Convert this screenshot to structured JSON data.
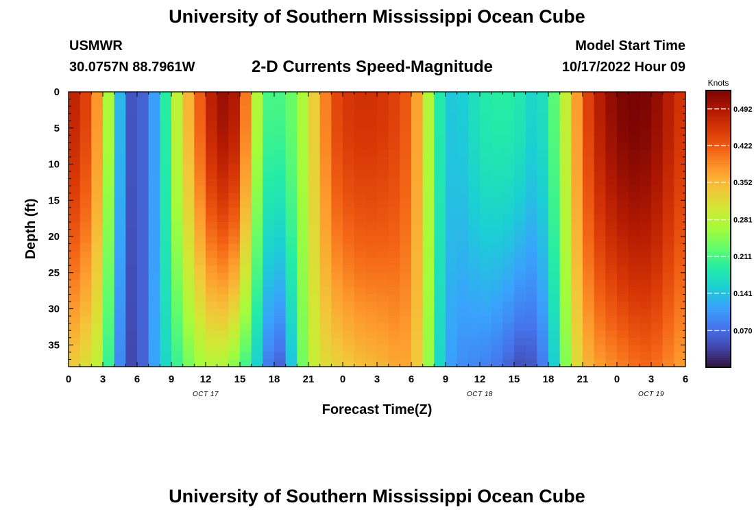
{
  "page": {
    "title": "University of Southern Mississippi Ocean Cube",
    "footer_title": "University of Southern Mississippi Ocean Cube"
  },
  "header": {
    "station": "USMWR",
    "coords": "30.0757N  88.7961W",
    "subtitle": "2-D Currents Speed-Magnitude",
    "model_label": "Model Start Time",
    "model_time": "10/17/2022 Hour 09"
  },
  "chart_data": {
    "type": "heatmap",
    "title": "2-D Currents Speed-Magnitude",
    "xlabel": "Forecast Time(Z)",
    "ylabel": "Depth (ft)",
    "x_range_hours": [
      0,
      54
    ],
    "y_range_ft": [
      0,
      38
    ],
    "x_tick_labels": [
      "0",
      "3",
      "6",
      "9",
      "12",
      "15",
      "18",
      "21",
      "0",
      "3",
      "6",
      "9",
      "12",
      "15",
      "18",
      "21",
      "0",
      "3",
      "6"
    ],
    "date_labels": [
      {
        "label": "OCT 17",
        "hour": 12
      },
      {
        "label": "OCT 18",
        "hour": 36
      },
      {
        "label": "OCT 19",
        "hour": 51
      }
    ],
    "y_ticks": [
      0,
      5,
      10,
      15,
      20,
      25,
      30,
      35
    ],
    "colorbar": {
      "label": "Knots",
      "min": 0.0,
      "max": 0.527,
      "ticks": [
        "0.070",
        "0.141",
        "0.211",
        "0.281",
        "0.352",
        "0.422",
        "0.492"
      ],
      "colors": [
        "#30123b",
        "#4145ab",
        "#4675ed",
        "#39a2fc",
        "#1bcfd4",
        "#24eca6",
        "#61fc6c",
        "#a4fc3b",
        "#d1e834",
        "#f3c63a",
        "#fe9b2d",
        "#f36315",
        "#d93806",
        "#b11901",
        "#7a0403"
      ]
    },
    "grid_resolution": {
      "columns": 54,
      "rows": 38
    },
    "speed_keyframes": [
      {
        "hour": 0,
        "surface": 0.48,
        "bottom": 0.34
      },
      {
        "hour": 1,
        "surface": 0.47,
        "bottom": 0.32
      },
      {
        "hour": 2,
        "surface": 0.42,
        "bottom": 0.3
      },
      {
        "hour": 3,
        "surface": 0.34,
        "bottom": 0.27
      },
      {
        "hour": 4,
        "surface": 0.2,
        "bottom": 0.13
      },
      {
        "hour": 5,
        "surface": 0.06,
        "bottom": 0.05
      },
      {
        "hour": 6,
        "surface": 0.04,
        "bottom": 0.03
      },
      {
        "hour": 7,
        "surface": 0.08,
        "bottom": 0.09
      },
      {
        "hour": 8,
        "surface": 0.14,
        "bottom": 0.14
      },
      {
        "hour": 9,
        "surface": 0.24,
        "bottom": 0.18
      },
      {
        "hour": 10,
        "surface": 0.33,
        "bottom": 0.22
      },
      {
        "hour": 11,
        "surface": 0.38,
        "bottom": 0.25
      },
      {
        "hour": 12,
        "surface": 0.46,
        "bottom": 0.27
      },
      {
        "hour": 13,
        "surface": 0.5,
        "bottom": 0.28
      },
      {
        "hour": 14,
        "surface": 0.51,
        "bottom": 0.26
      },
      {
        "hour": 15,
        "surface": 0.47,
        "bottom": 0.23
      },
      {
        "hour": 16,
        "surface": 0.33,
        "bottom": 0.18
      },
      {
        "hour": 17,
        "surface": 0.22,
        "bottom": 0.12
      },
      {
        "hour": 18,
        "surface": 0.2,
        "bottom": 0.04
      },
      {
        "hour": 19,
        "surface": 0.22,
        "bottom": 0.08
      },
      {
        "hour": 20,
        "surface": 0.24,
        "bottom": 0.2
      },
      {
        "hour": 21,
        "surface": 0.3,
        "bottom": 0.27
      },
      {
        "hour": 22,
        "surface": 0.36,
        "bottom": 0.31
      },
      {
        "hour": 23,
        "surface": 0.43,
        "bottom": 0.32
      },
      {
        "hour": 24,
        "surface": 0.45,
        "bottom": 0.33
      },
      {
        "hour": 25,
        "surface": 0.46,
        "bottom": 0.34
      },
      {
        "hour": 26,
        "surface": 0.46,
        "bottom": 0.35
      },
      {
        "hour": 27,
        "surface": 0.46,
        "bottom": 0.35
      },
      {
        "hour": 28,
        "surface": 0.45,
        "bottom": 0.36
      },
      {
        "hour": 29,
        "surface": 0.44,
        "bottom": 0.37
      },
      {
        "hour": 30,
        "surface": 0.41,
        "bottom": 0.36
      },
      {
        "hour": 31,
        "surface": 0.33,
        "bottom": 0.31
      },
      {
        "hour": 32,
        "surface": 0.22,
        "bottom": 0.2
      },
      {
        "hour": 33,
        "surface": 0.15,
        "bottom": 0.12
      },
      {
        "hour": 34,
        "surface": 0.14,
        "bottom": 0.1
      },
      {
        "hour": 35,
        "surface": 0.16,
        "bottom": 0.09
      },
      {
        "hour": 36,
        "surface": 0.18,
        "bottom": 0.09
      },
      {
        "hour": 37,
        "surface": 0.19,
        "bottom": 0.08
      },
      {
        "hour": 38,
        "surface": 0.19,
        "bottom": 0.07
      },
      {
        "hour": 39,
        "surface": 0.19,
        "bottom": 0.05
      },
      {
        "hour": 40,
        "surface": 0.17,
        "bottom": 0.04
      },
      {
        "hour": 41,
        "surface": 0.15,
        "bottom": 0.06
      },
      {
        "hour": 42,
        "surface": 0.19,
        "bottom": 0.1
      },
      {
        "hour": 43,
        "surface": 0.25,
        "bottom": 0.2
      },
      {
        "hour": 44,
        "surface": 0.33,
        "bottom": 0.29
      },
      {
        "hour": 45,
        "surface": 0.42,
        "bottom": 0.34
      },
      {
        "hour": 46,
        "surface": 0.47,
        "bottom": 0.37
      },
      {
        "hour": 47,
        "surface": 0.5,
        "bottom": 0.38
      },
      {
        "hour": 48,
        "surface": 0.52,
        "bottom": 0.39
      },
      {
        "hour": 49,
        "surface": 0.53,
        "bottom": 0.4
      },
      {
        "hour": 50,
        "surface": 0.53,
        "bottom": 0.41
      },
      {
        "hour": 51,
        "surface": 0.52,
        "bottom": 0.41
      },
      {
        "hour": 52,
        "surface": 0.5,
        "bottom": 0.4
      },
      {
        "hour": 53,
        "surface": 0.47,
        "bottom": 0.38
      },
      {
        "hour": 54,
        "surface": 0.45,
        "bottom": 0.37
      }
    ]
  }
}
